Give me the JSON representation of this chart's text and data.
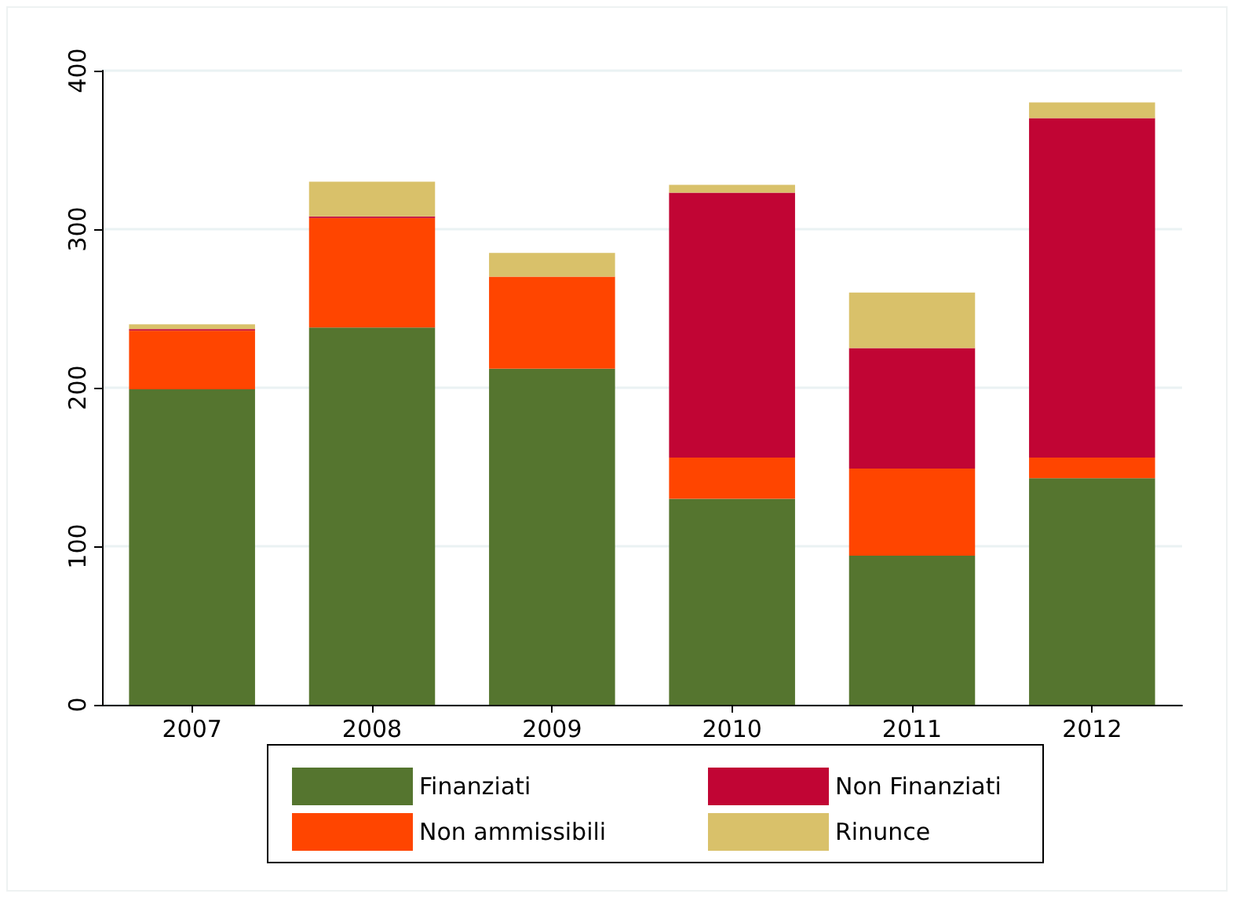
{
  "chart_data": {
    "type": "bar",
    "stacked": true,
    "categories": [
      "2007",
      "2008",
      "2009",
      "2010",
      "2011",
      "2012"
    ],
    "series": [
      {
        "name": "Finanziati",
        "color": "#55752f",
        "values": [
          199,
          238,
          212,
          130,
          94,
          143
        ]
      },
      {
        "name": "Non ammissibili",
        "color": "#ff4500",
        "values": [
          37,
          69,
          58,
          26,
          55,
          13
        ]
      },
      {
        "name": "Non Finanziati",
        "color": "#c10534",
        "values": [
          1,
          1,
          null,
          167,
          76,
          214
        ]
      },
      {
        "name": "Rinunce",
        "color": "#d9c16a",
        "values": [
          3,
          22,
          15,
          5,
          35,
          10
        ]
      }
    ],
    "ylim": [
      0,
      400
    ],
    "yticks": [
      0,
      100,
      200,
      300,
      400
    ],
    "grid": "y",
    "legend": "bottom"
  }
}
